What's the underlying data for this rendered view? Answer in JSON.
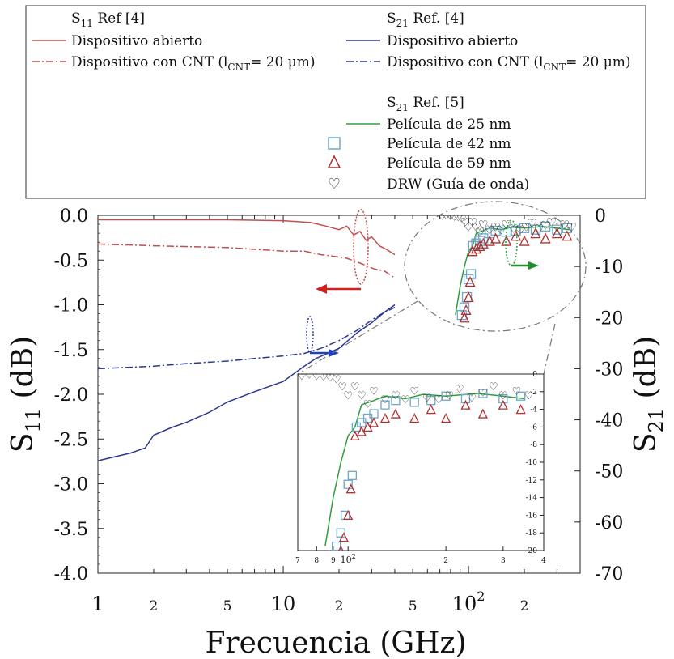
{
  "chart_data": {
    "type": "line",
    "title": "",
    "xlabel": "Frecuencia (GHz)",
    "ylabel": "S11 (dB)",
    "ylabel_sub": "11",
    "y2label": "S21 (dB)",
    "y2label_sub": "21",
    "xscale": "log",
    "xlim": [
      1,
      400
    ],
    "ylim": [
      -4.0,
      0.0
    ],
    "y2lim": [
      -70,
      0
    ],
    "x_ticks_major": [
      {
        "v": 1,
        "label": "1"
      },
      {
        "v": 10,
        "label": "10"
      },
      {
        "v": 100,
        "label": "10",
        "sup": "2"
      }
    ],
    "x_ticks_minor_labeled": [
      {
        "v": 2,
        "label": "2"
      },
      {
        "v": 5,
        "label": "5"
      },
      {
        "v": 20,
        "label": "2"
      },
      {
        "v": 50,
        "label": "5"
      },
      {
        "v": 200,
        "label": "2"
      }
    ],
    "y_ticks": [
      "0.0",
      "-0.5",
      "-1.0",
      "-1.5",
      "-2.0",
      "-2.5",
      "-3.0",
      "-3.5",
      "-4.0"
    ],
    "y_tick_values": [
      0.0,
      -0.5,
      -1.0,
      -1.5,
      -2.0,
      -2.5,
      -3.0,
      -3.5,
      -4.0
    ],
    "y2_ticks": [
      "0",
      "-10",
      "-20",
      "-30",
      "-40",
      "-50",
      "-60",
      "-70"
    ],
    "y2_tick_values": [
      0,
      -10,
      -20,
      -30,
      -40,
      -50,
      -60,
      -70
    ],
    "legend_placement": "top (boxed, two columns)",
    "legend_left": {
      "title": "S",
      "title_sub": "11",
      "title_rest": " Ref [4]",
      "entries": [
        {
          "label": "Dispositivo abierto",
          "style": "solid",
          "color": "#c0504d"
        },
        {
          "label": "Dispositivo con CNT (l",
          "label_sub": "CNT",
          "label_rest": "= 20 μm)",
          "style": "dashdot",
          "color": "#c0504d"
        }
      ]
    },
    "legend_right": {
      "title": "S",
      "title_sub": "21",
      "title_rest": " Ref. [4]",
      "entries": [
        {
          "label": "Dispositivo abierto",
          "style": "solid",
          "color": "#2b3990"
        },
        {
          "label": "Dispositivo con CNT (l",
          "label_sub": "CNT",
          "label_rest": "= 20 μm)",
          "style": "dashdot",
          "color": "#2b3990"
        }
      ]
    },
    "legend_ref5": {
      "title": "S",
      "title_sub": "21",
      "title_rest": " Ref. [5]",
      "entries": [
        {
          "label": "Película de 25 nm",
          "marker": "line",
          "color": "#2e9e3e"
        },
        {
          "label": "Película de 42 nm",
          "marker": "square",
          "color": "#6fa8c8"
        },
        {
          "label": "Película de 59 nm",
          "marker": "triangle",
          "color": "#b03030"
        },
        {
          "label": "DRW (Guía de onda)",
          "marker": "heart",
          "color": "#111111"
        }
      ]
    },
    "series": [
      {
        "name": "S11 Ref [4] Dispositivo abierto",
        "axis": "left",
        "color": "#c0504d",
        "style": "solid",
        "x": [
          1,
          2,
          5,
          10,
          14,
          17,
          20,
          22,
          24,
          26,
          28,
          30,
          33,
          36,
          40
        ],
        "y": [
          -0.05,
          -0.05,
          -0.05,
          -0.06,
          -0.08,
          -0.12,
          -0.16,
          -0.12,
          -0.22,
          -0.18,
          -0.28,
          -0.24,
          -0.34,
          -0.38,
          -0.44
        ]
      },
      {
        "name": "S11 Ref [4] Dispositivo con CNT",
        "axis": "left",
        "color": "#c0504d",
        "style": "dashdot",
        "x": [
          1,
          2,
          5,
          10,
          13,
          16,
          19,
          22,
          25,
          28,
          31,
          35,
          40
        ],
        "y": [
          -0.32,
          -0.34,
          -0.36,
          -0.4,
          -0.4,
          -0.44,
          -0.46,
          -0.48,
          -0.52,
          -0.56,
          -0.6,
          -0.62,
          -0.7
        ]
      },
      {
        "name": "S21 Ref [4] Dispositivo abierto",
        "axis": "right",
        "color": "#2b3990",
        "style": "solid",
        "x": [
          1,
          1.5,
          1.8,
          2,
          2.5,
          3,
          4,
          5,
          7,
          10,
          13,
          15,
          20,
          25,
          30,
          35,
          40
        ],
        "y": [
          -48.0,
          -46.5,
          -45.5,
          -43.0,
          -41.5,
          -40.5,
          -38.5,
          -36.5,
          -34.5,
          -32.5,
          -29.5,
          -28.0,
          -26.0,
          -23.0,
          -21.0,
          -19.0,
          -17.5
        ]
      },
      {
        "name": "S21 Ref [4] Dispositivo con CNT",
        "axis": "right",
        "color": "#2b3990",
        "style": "dashdot",
        "x": [
          1,
          2,
          3,
          5,
          7,
          10,
          13,
          16,
          20,
          25,
          30,
          35,
          40
        ],
        "y": [
          -30.0,
          -29.5,
          -29.0,
          -28.5,
          -28.0,
          -27.5,
          -27.0,
          -26.0,
          -24.5,
          -22.5,
          -20.5,
          -19.0,
          -18.0
        ]
      },
      {
        "name": "S21 Ref [5] Película de 25 nm",
        "axis": "right",
        "color": "#2e9e3e",
        "style": "solid",
        "x": [
          85,
          90,
          95,
          100,
          105,
          110,
          120,
          130,
          150,
          170,
          200,
          250,
          300,
          350
        ],
        "y": [
          -19.5,
          -14.0,
          -10.0,
          -7.0,
          -6.0,
          -3.5,
          -3.0,
          -2.5,
          -2.8,
          -2.3,
          -2.5,
          -2.2,
          -2.5,
          -2.8
        ]
      }
    ],
    "scatter_series": [
      {
        "name": "Película de 42 nm",
        "marker": "square",
        "color": "#6fa8c8",
        "x": [
          92,
          95,
          98,
          100,
          103,
          106,
          110,
          115,
          120,
          130,
          140,
          160,
          180,
          200,
          230,
          260,
          300,
          340
        ],
        "y": [
          -19.5,
          -18.0,
          -16.0,
          -12.5,
          -11.5,
          -6.0,
          -5.5,
          -5.0,
          -4.5,
          -3.5,
          -3.0,
          -3.2,
          -3.0,
          -2.5,
          -2.8,
          -2.2,
          -2.8,
          -2.5
        ]
      },
      {
        "name": "Película de 59 nm",
        "marker": "triangle",
        "color": "#b03030",
        "x": [
          95,
          97,
          100,
          102,
          105,
          110,
          115,
          120,
          130,
          140,
          160,
          180,
          200,
          230,
          260,
          300,
          340
        ],
        "y": [
          -20.0,
          -18.5,
          -16.0,
          -13.0,
          -7.0,
          -6.5,
          -6.0,
          -5.5,
          -5.0,
          -4.5,
          -5.0,
          -4.0,
          -5.0,
          -3.5,
          -4.5,
          -3.5,
          -4.0
        ]
      },
      {
        "name": "DRW (Guía de onda)",
        "marker": "heart",
        "color": "#111111",
        "x": [
          72,
          76,
          80,
          84,
          88,
          92,
          96,
          100,
          105,
          110,
          115,
          120,
          130,
          140,
          150,
          160,
          175,
          190,
          205,
          220,
          240,
          260,
          280,
          300,
          330,
          360
        ],
        "y": [
          -0.3,
          -0.2,
          -0.3,
          -0.4,
          -0.5,
          -0.7,
          -1.5,
          -2.5,
          -1.5,
          -2.5,
          -3.5,
          -2.0,
          -3.0,
          -2.5,
          -3.0,
          -2.0,
          -2.8,
          -3.0,
          -2.5,
          -1.8,
          -2.8,
          -2.2,
          -1.5,
          -2.5,
          -2.0,
          -2.5
        ]
      }
    ],
    "inset": {
      "xlim": [
        70,
        400
      ],
      "ylim": [
        -20,
        0
      ],
      "y_ticks": [
        "0",
        "-2",
        "-4",
        "-6",
        "-8",
        "-10",
        "-12",
        "-14",
        "-16",
        "-18",
        "-20"
      ],
      "y_tick_values": [
        0,
        -2,
        -4,
        -6,
        -8,
        -10,
        -12,
        -14,
        -16,
        -18,
        -20
      ],
      "x_ticks": [
        {
          "v": 70,
          "label": "7"
        },
        {
          "v": 80,
          "label": "8"
        },
        {
          "v": 90,
          "label": "9"
        },
        {
          "v": 100,
          "label": "10",
          "sup": "2"
        },
        {
          "v": 200,
          "label": "2"
        },
        {
          "v": 300,
          "label": "3"
        },
        {
          "v": 400,
          "label": "4"
        }
      ]
    },
    "annotations": [
      {
        "type": "ellipse",
        "color": "#c0504d",
        "note": "marks S11 curves near 25 GHz"
      },
      {
        "type": "arrow",
        "direction": "left",
        "color": "#d12020",
        "axis": "S11"
      },
      {
        "type": "ellipse",
        "color": "#2b3990",
        "note": "marks S21 curves near 15 GHz"
      },
      {
        "type": "arrow",
        "direction": "right",
        "color": "#2040c0",
        "axis": "S21"
      },
      {
        "type": "ellipse",
        "color": "#2e9e3e",
        "note": "marks S21 Ref [5] curves"
      },
      {
        "type": "arrow",
        "direction": "right",
        "color": "#1f8f2a",
        "axis": "S21"
      },
      {
        "type": "ellipse",
        "color": "#777777",
        "style": "dashed",
        "note": "zoom region shown in inset"
      }
    ]
  }
}
